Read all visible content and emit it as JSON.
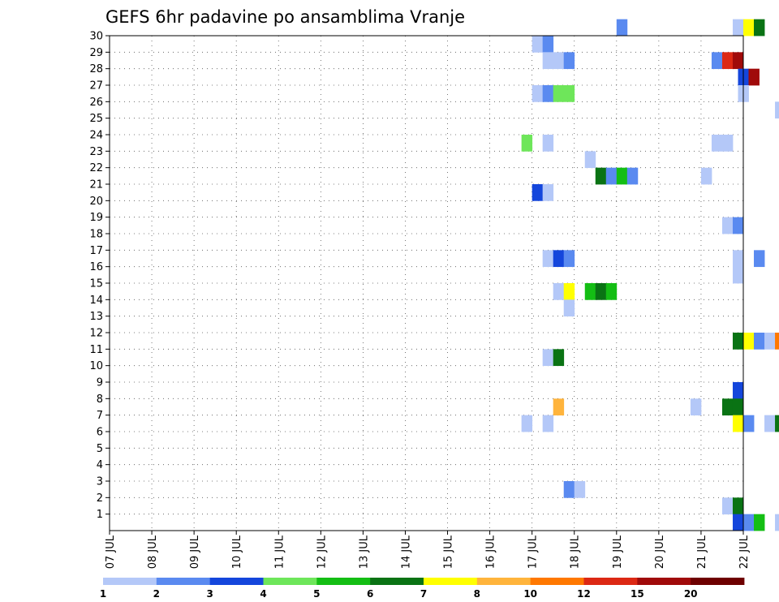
{
  "chart_data": {
    "type": "heatmap",
    "title": "GEFS 6hr padavine po ansamblima Vranje",
    "x_ticks": [
      "07 JUL",
      "08 JUL",
      "09 JUL",
      "10 JUL",
      "11 JUL",
      "12 JUL",
      "13 JUL",
      "14 JUL",
      "15 JUL",
      "16 JUL",
      "17 JUL",
      "18 JUL",
      "19 JUL",
      "20 JUL",
      "21 JUL",
      "22 JUL"
    ],
    "x_range_days": [
      0,
      15
    ],
    "y_ticks": [
      "1",
      "2",
      "3",
      "4",
      "5",
      "6",
      "7",
      "8",
      "9",
      "10",
      "11",
      "12",
      "13",
      "14",
      "15",
      "16",
      "17",
      "18",
      "19",
      "20",
      "21",
      "22",
      "23",
      "24",
      "25",
      "26",
      "27",
      "28",
      "29",
      "30"
    ],
    "y_range": [
      0,
      30
    ],
    "grid": true,
    "legend": {
      "position": "bottom",
      "colors": [
        "#b4c8f8",
        "#5a8af0",
        "#1446dc",
        "#6ee65a",
        "#14be14",
        "#0a7314",
        "#ffff00",
        "#ffb43c",
        "#ff7800",
        "#dc2814",
        "#a00a0a",
        "#6e0000"
      ],
      "labels": [
        "1",
        "2",
        "3",
        "4",
        "5",
        "6",
        "7",
        "8",
        "10",
        "12",
        "15",
        "20"
      ],
      "label_slots": [
        0,
        1,
        2,
        3,
        4,
        5,
        6,
        7,
        8,
        9,
        10,
        11
      ]
    },
    "cells": [
      [
        0,
        14.75,
        30
      ],
      [
        0,
        17.75,
        30
      ],
      [
        2,
        19,
        30
      ],
      [
        4,
        19.5,
        30
      ],
      [
        5,
        19.75,
        30
      ],
      [
        5,
        20,
        30
      ],
      [
        4,
        20.25,
        30
      ],
      [
        0,
        21.25,
        30
      ],
      [
        1,
        21.5,
        30
      ],
      [
        6,
        15,
        30
      ],
      [
        5,
        15.25,
        30
      ],
      [
        1,
        12,
        30
      ],
      [
        0,
        10,
        29
      ],
      [
        1,
        10.25,
        29
      ],
      [
        1,
        16.5,
        29
      ],
      [
        1,
        20,
        29
      ],
      [
        10,
        20.25,
        29
      ],
      [
        1,
        20.5,
        29
      ],
      [
        0,
        20.75,
        29
      ],
      [
        0,
        21,
        29
      ],
      [
        0,
        10.25,
        28
      ],
      [
        0,
        10.5,
        28
      ],
      [
        1,
        10.75,
        28
      ],
      [
        1,
        14.25,
        28
      ],
      [
        9,
        14.5,
        28
      ],
      [
        10,
        14.75,
        28
      ],
      [
        2,
        14.875,
        27
      ],
      [
        10,
        15.125,
        27
      ],
      [
        0,
        10,
        26
      ],
      [
        1,
        10.25,
        26
      ],
      [
        3,
        10.5,
        26
      ],
      [
        3,
        10.75,
        26
      ],
      [
        0,
        14.875,
        26
      ],
      [
        0,
        18.75,
        26
      ],
      [
        1,
        19.25,
        26
      ],
      [
        1,
        19.75,
        26
      ],
      [
        0,
        15.75,
        25
      ],
      [
        1,
        16.25,
        25
      ],
      [
        5,
        16.5,
        25
      ],
      [
        2,
        16.75,
        25
      ],
      [
        2,
        17.5,
        25
      ],
      [
        1,
        17.75,
        25
      ],
      [
        0,
        20.5,
        25
      ],
      [
        3,
        20.75,
        25
      ],
      [
        1,
        21,
        25
      ],
      [
        2,
        21.25,
        25
      ],
      [
        4,
        21.5,
        25
      ],
      [
        11,
        21.75,
        25
      ],
      [
        5,
        16.5,
        24
      ],
      [
        8,
        16.75,
        24
      ],
      [
        0,
        17,
        24
      ],
      [
        1,
        17.25,
        24
      ],
      [
        2,
        17.5,
        24
      ],
      [
        9,
        17.75,
        24
      ],
      [
        8,
        18,
        24
      ],
      [
        4,
        18.25,
        24
      ],
      [
        5,
        18.5,
        24
      ],
      [
        5,
        18.75,
        24
      ],
      [
        4,
        19.25,
        24
      ],
      [
        6,
        19.5,
        24
      ],
      [
        2,
        19.75,
        24
      ],
      [
        0,
        21.875,
        24
      ],
      [
        3,
        9.75,
        23
      ],
      [
        0,
        10.25,
        23
      ],
      [
        0,
        14.25,
        23
      ],
      [
        0,
        14.5,
        23
      ],
      [
        0,
        11.25,
        22
      ],
      [
        4,
        16.75,
        22
      ],
      [
        0,
        17,
        22
      ],
      [
        1,
        18.25,
        22
      ],
      [
        0,
        18.75,
        22
      ],
      [
        0,
        19,
        22
      ],
      [
        5,
        11.5,
        21
      ],
      [
        1,
        11.75,
        21
      ],
      [
        4,
        12,
        21
      ],
      [
        1,
        12.25,
        21
      ],
      [
        0,
        14,
        21
      ],
      [
        2,
        10,
        20
      ],
      [
        0,
        10.25,
        20
      ],
      [
        1,
        17.75,
        20
      ],
      [
        1,
        18.75,
        20
      ],
      [
        5,
        19.75,
        20
      ],
      [
        10,
        20,
        20
      ],
      [
        6,
        20.25,
        20
      ],
      [
        9,
        20.5,
        20
      ],
      [
        2,
        20.75,
        20
      ],
      [
        9,
        21.5,
        20
      ],
      [
        2,
        21.75,
        20
      ],
      [
        1,
        16.75,
        19
      ],
      [
        1,
        17.25,
        19
      ],
      [
        10,
        17.5,
        19
      ],
      [
        8,
        17.75,
        19
      ],
      [
        1,
        18.5,
        19
      ],
      [
        0,
        14.5,
        18
      ],
      [
        1,
        14.75,
        18
      ],
      [
        8,
        16,
        18
      ],
      [
        0,
        16.25,
        18
      ],
      [
        5,
        16.5,
        18
      ],
      [
        4,
        16.75,
        18
      ],
      [
        6,
        17,
        18
      ],
      [
        2,
        17.25,
        18
      ],
      [
        5,
        17.5,
        18
      ],
      [
        5,
        17.75,
        18
      ],
      [
        0,
        19.25,
        18
      ],
      [
        0,
        19.5,
        18
      ],
      [
        5,
        16,
        17
      ],
      [
        2,
        16.25,
        17
      ],
      [
        0,
        16.5,
        17
      ],
      [
        0,
        10.25,
        16
      ],
      [
        2,
        10.5,
        16
      ],
      [
        1,
        10.75,
        16
      ],
      [
        0,
        14.75,
        16
      ],
      [
        1,
        15.25,
        16
      ],
      [
        0,
        17.75,
        16
      ],
      [
        4,
        18.75,
        16
      ],
      [
        1,
        20.75,
        16
      ],
      [
        0,
        21.25,
        16
      ],
      [
        1,
        21.5,
        16
      ],
      [
        1,
        21.75,
        16
      ],
      [
        0,
        14.75,
        15
      ],
      [
        1,
        17,
        15
      ],
      [
        0,
        17.25,
        15
      ],
      [
        0,
        17.5,
        15
      ],
      [
        0,
        19.25,
        15
      ],
      [
        4,
        19.5,
        15
      ],
      [
        0,
        10.5,
        14
      ],
      [
        6,
        10.75,
        14
      ],
      [
        4,
        11.25,
        14
      ],
      [
        5,
        11.5,
        14
      ],
      [
        4,
        11.75,
        14
      ],
      [
        1,
        16.5,
        14
      ],
      [
        1,
        16.75,
        14
      ],
      [
        0,
        18.5,
        14
      ],
      [
        0,
        10.75,
        13
      ],
      [
        1,
        20.75,
        13
      ],
      [
        2,
        17.75,
        12
      ],
      [
        0,
        18,
        12
      ],
      [
        4,
        18.25,
        12
      ],
      [
        10,
        18.5,
        12
      ],
      [
        0,
        19.25,
        12
      ],
      [
        6,
        19.5,
        12
      ],
      [
        7,
        20.25,
        12
      ],
      [
        5,
        20.5,
        12
      ],
      [
        0,
        21,
        12
      ],
      [
        6,
        21.25,
        12
      ],
      [
        5,
        14.75,
        11
      ],
      [
        6,
        15,
        11
      ],
      [
        1,
        15.25,
        11
      ],
      [
        0,
        15.5,
        11
      ],
      [
        8,
        15.75,
        11
      ],
      [
        4,
        16,
        11
      ],
      [
        2,
        16.25,
        11
      ],
      [
        6,
        16.5,
        11
      ],
      [
        5,
        17,
        11
      ],
      [
        4,
        17.25,
        11
      ],
      [
        4,
        19.25,
        11
      ],
      [
        7,
        19.5,
        11
      ],
      [
        0,
        10.25,
        10
      ],
      [
        5,
        10.5,
        10
      ],
      [
        0,
        20.75,
        10
      ],
      [
        0,
        21,
        9
      ],
      [
        7,
        21.25,
        9
      ],
      [
        2,
        21.5,
        9
      ],
      [
        2,
        14.75,
        8
      ],
      [
        0,
        16.75,
        8
      ],
      [
        7,
        10.5,
        7
      ],
      [
        0,
        13.75,
        7
      ],
      [
        5,
        14.5,
        7
      ],
      [
        5,
        14.75,
        7
      ],
      [
        4,
        20.25,
        7
      ],
      [
        0,
        9.75,
        6
      ],
      [
        0,
        10.25,
        6
      ],
      [
        6,
        14.75,
        6
      ],
      [
        1,
        15,
        6
      ],
      [
        0,
        15.5,
        6
      ],
      [
        5,
        15.75,
        6
      ],
      [
        0,
        16.25,
        6
      ],
      [
        4,
        16.5,
        6
      ],
      [
        0,
        19.25,
        6
      ],
      [
        1,
        19.75,
        6
      ],
      [
        0,
        18.75,
        4
      ],
      [
        2,
        19.25,
        4
      ],
      [
        7,
        19.5,
        4
      ],
      [
        1,
        19.75,
        4
      ],
      [
        4,
        20.25,
        4
      ],
      [
        0,
        20.5,
        4
      ],
      [
        1,
        20.75,
        4
      ],
      [
        0,
        21.25,
        4
      ],
      [
        9,
        21.5,
        4
      ],
      [
        2,
        21.75,
        4
      ],
      [
        1,
        10.75,
        2
      ],
      [
        0,
        11,
        2
      ],
      [
        0,
        14.5,
        1
      ],
      [
        5,
        14.75,
        1
      ],
      [
        2,
        14.75,
        0
      ],
      [
        1,
        15,
        0
      ],
      [
        4,
        15.25,
        0
      ],
      [
        0,
        15.75,
        0
      ]
    ]
  }
}
